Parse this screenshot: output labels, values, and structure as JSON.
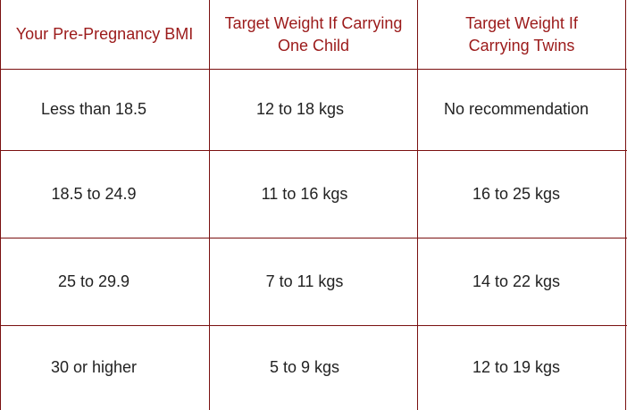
{
  "colors": {
    "header_text": "#9b1a1a",
    "body_text": "#222222",
    "border": "#7a1010",
    "background": "#ffffff"
  },
  "table": {
    "headers": [
      "Your Pre-Pregnancy BMI",
      "Target Weight If Carrying One Child",
      "Target Weight If Carrying Twins"
    ],
    "rows": [
      [
        "Less than 18.5",
        "12 to 18 kgs",
        "No recommendation"
      ],
      [
        "18.5 to 24.9",
        "11 to 16 kgs",
        "16 to 25 kgs"
      ],
      [
        "25 to 29.9",
        "7 to 11 kgs",
        "14 to 22 kgs"
      ],
      [
        "30 or higher",
        "5 to 9 kgs",
        "12 to 19 kgs"
      ]
    ]
  }
}
